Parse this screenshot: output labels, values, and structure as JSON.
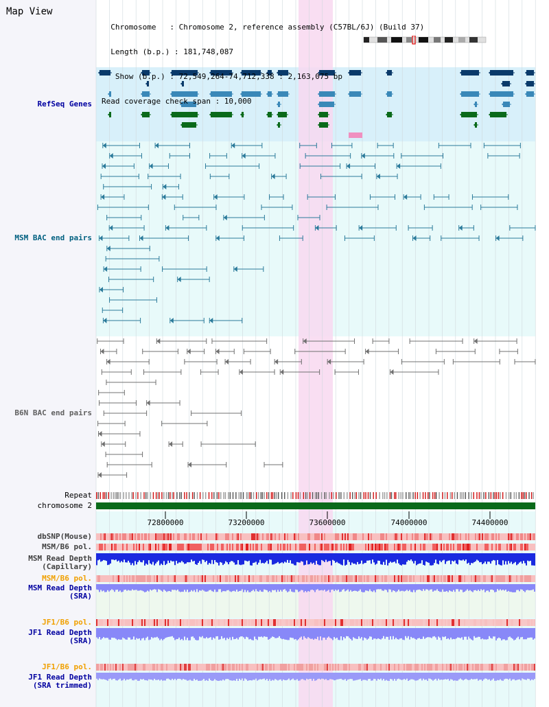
{
  "view": {
    "title": "Map View",
    "info_lines": [
      "  Chromosome   : Chromosome 2, reference assembly (C57BL/6J) (Build 37)",
      "  Length (b.p.) : 181,748,087",
      "   Show (b.p.) : 72,549,264-74,712,338 : 2,163,075 bp",
      "Read coverage check span : 10,000"
    ]
  },
  "tracks": {
    "refseq": "RefSeq Genes",
    "msm_bac": "MSM BAC end pairs",
    "b6n_bac": "B6N BAC end pairs",
    "repeat": "Repeat",
    "chromosome": "chromosome 2",
    "dbsnp": "dbSNP(Mouse)",
    "msm_b6_pol_1": "MSM/B6 pol.",
    "msm_depth_cap": "MSM Read Depth\n(Capillary)",
    "msm_b6_pol_2": "MSM/B6 pol.",
    "msm_depth_sra": "MSM Read Depth\n(SRA)",
    "jf1_b6_pol_1": "JF1/B6 pol.",
    "jf1_depth_sra": "JF1 Read Depth\n(SRA)",
    "jf1_b6_pol_2": "JF1/B6 pol.",
    "jf1_depth_trim": "JF1 Read Depth\n(SRA trimmed)"
  },
  "axis": {
    "ticks": [
      "72800000",
      "73200000",
      "73600000",
      "74000000",
      "74400000"
    ]
  },
  "colors": {
    "highlight": "#f8d8f0",
    "refseq_bg": "#d8f0fa",
    "track_bg": "#e8fafa",
    "gene_dark": "#0a3a6a",
    "gene_mid": "#3a88b8",
    "gene_green": "#0a6a1a",
    "bac_msm": "#2a7a9a",
    "bac_b6n": "#707070",
    "chrom_bar": "#0a6a1a",
    "depth_dark": "#1a2ae0",
    "depth_light": "#8888f8",
    "pol_red": "#f06060",
    "label_orange": "#f0a000",
    "label_blue": "#0000a0"
  }
}
